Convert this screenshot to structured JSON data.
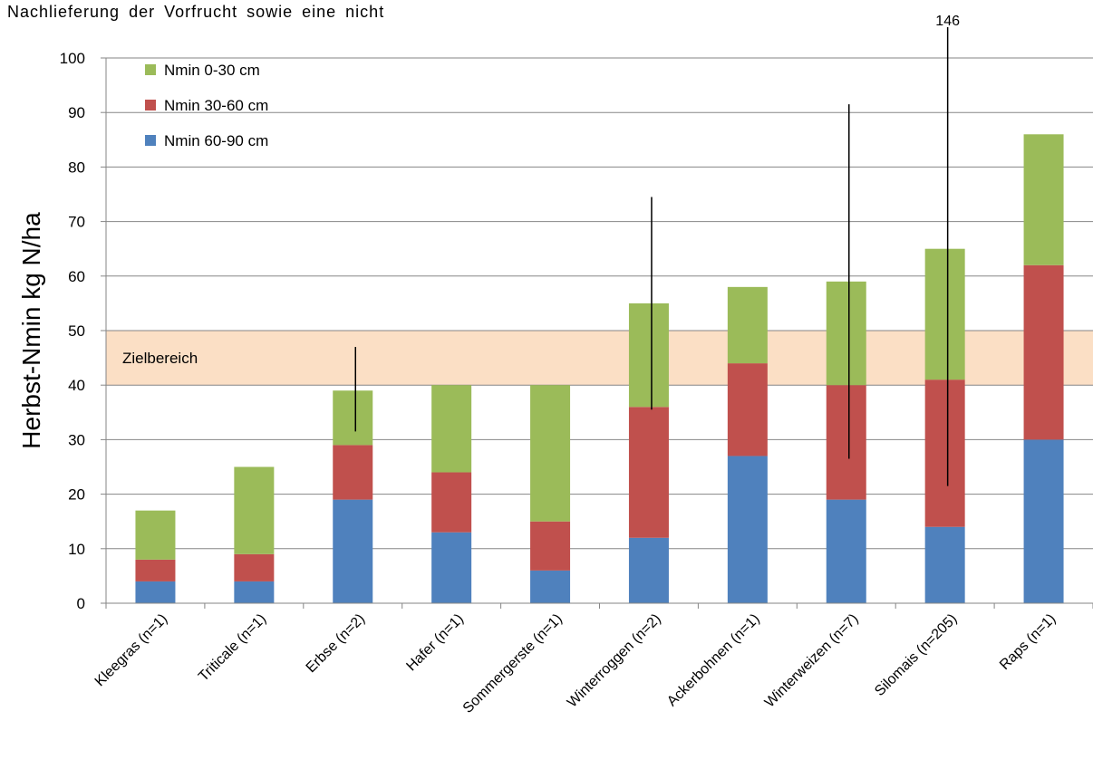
{
  "top_text": "Nachlieferung der Vorfrucht sowie eine nicht",
  "chart_data": {
    "type": "bar",
    "stacked": true,
    "categories": [
      "Kleegras (n=1)",
      "Triticale (n=1)",
      "Erbse (n=2)",
      "Hafer (n=1)",
      "Sommergerste (n=1)",
      "Winterroggen (n=2)",
      "Ackerbohnen (n=1)",
      "Winterweizen (n=7)",
      "Silomais (n=205)",
      "Raps (n=1)"
    ],
    "series": [
      {
        "name": "Nmin 60-90 cm",
        "color": "#4f81bd",
        "values": [
          4,
          4,
          19,
          13,
          6,
          12,
          27,
          19,
          14,
          30
        ]
      },
      {
        "name": "Nmin 30-60 cm",
        "color": "#c0504d",
        "values": [
          4,
          5,
          10,
          11,
          9,
          24,
          17,
          21,
          27,
          32
        ]
      },
      {
        "name": "Nmin 0-30 cm",
        "color": "#9bbb59",
        "values": [
          9,
          16,
          10,
          16,
          25,
          19,
          14,
          19,
          24,
          24
        ]
      }
    ],
    "error_bars": [
      {
        "category": "Erbse (n=2)",
        "low": 31.5,
        "high": 47
      },
      {
        "category": "Winterroggen (n=2)",
        "low": 35.5,
        "high": 74.5
      },
      {
        "category": "Winterweizen (n=7)",
        "low": 26.5,
        "high": 91.5
      },
      {
        "category": "Silomais (n=205)",
        "low": 21.5,
        "high": 146
      }
    ],
    "error_bar_label": "146",
    "target_band": {
      "label": "Zielbereich",
      "low": 40,
      "high": 50,
      "color": "#fbdfc5"
    },
    "ylabel": "Herbst-Nmin  kg N/ha",
    "ylim": [
      0,
      100
    ],
    "yticks": [
      0,
      10,
      20,
      30,
      40,
      50,
      60,
      70,
      80,
      90,
      100
    ],
    "grid": true,
    "legend_position": "top-left"
  }
}
